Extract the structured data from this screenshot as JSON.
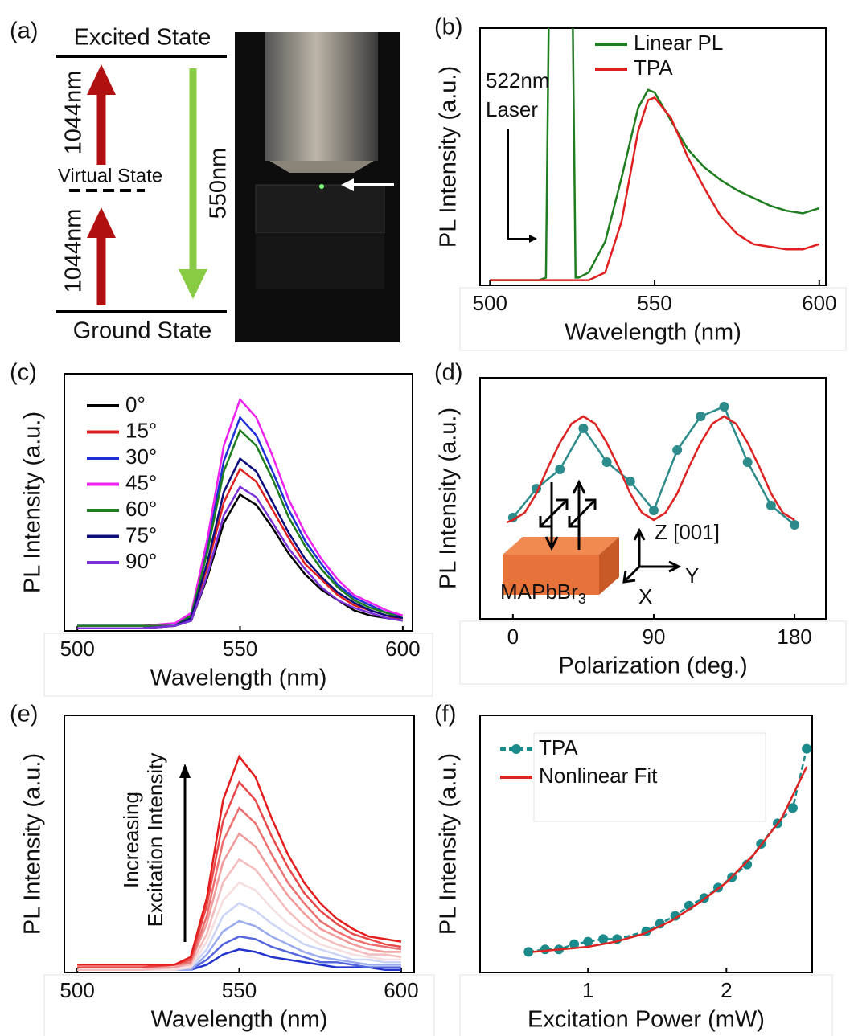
{
  "diagram": {
    "label": "(a)",
    "excited": "Excited State",
    "ground": "Ground State",
    "virtual": "Virtual State",
    "transition_up": [
      "1044nm",
      "1044nm"
    ],
    "emission": "550nm"
  },
  "chart_data": [
    {
      "label": "(b)",
      "type": "line",
      "xlabel": "Wavelength (nm)",
      "ylabel": "PL Intensity (a.u.)",
      "xlim": [
        497,
        602
      ],
      "xticks": [
        500,
        550,
        600
      ],
      "ylim": [
        0,
        1
      ],
      "legend": "upper right",
      "annotations": [
        "522nm",
        "Laser"
      ],
      "x": [
        500,
        505,
        510,
        515,
        517,
        518,
        525,
        526,
        527,
        530,
        535,
        540,
        545,
        548,
        550,
        555,
        560,
        565,
        570,
        575,
        580,
        585,
        590,
        595,
        600
      ],
      "series": [
        {
          "name": "Linear PL",
          "color": "#1e7d1e",
          "values": [
            0.02,
            0.02,
            0.02,
            0.02,
            0.03,
            1.2,
            1.2,
            0.03,
            0.03,
            0.05,
            0.17,
            0.42,
            0.69,
            0.76,
            0.75,
            0.64,
            0.53,
            0.46,
            0.41,
            0.37,
            0.34,
            0.31,
            0.29,
            0.28,
            0.3
          ]
        },
        {
          "name": "TPA",
          "color": "#e02020",
          "values": [
            0.02,
            0.02,
            0.02,
            0.02,
            0.02,
            0.02,
            0.02,
            0.02,
            0.02,
            0.02,
            0.05,
            0.25,
            0.6,
            0.72,
            0.73,
            0.65,
            0.5,
            0.38,
            0.27,
            0.2,
            0.16,
            0.15,
            0.14,
            0.14,
            0.16
          ]
        }
      ]
    },
    {
      "label": "(c)",
      "type": "line",
      "xlabel": "Wavelength (nm)",
      "ylabel": "PL Intensity (a.u.)",
      "xlim": [
        496,
        603
      ],
      "xticks": [
        500,
        550,
        600
      ],
      "ylim": [
        0,
        1
      ],
      "legend": "upper left",
      "x": [
        500,
        510,
        520,
        530,
        535,
        540,
        545,
        550,
        555,
        560,
        565,
        570,
        575,
        580,
        585,
        590,
        595,
        600
      ],
      "series": [
        {
          "name": "0°",
          "color": "#000000",
          "values": [
            0.01,
            0.01,
            0.01,
            0.02,
            0.04,
            0.21,
            0.42,
            0.53,
            0.49,
            0.4,
            0.3,
            0.22,
            0.16,
            0.12,
            0.08,
            0.06,
            0.05,
            0.04
          ]
        },
        {
          "name": "15°",
          "color": "#e02020",
          "values": [
            0.01,
            0.01,
            0.01,
            0.02,
            0.05,
            0.25,
            0.5,
            0.63,
            0.58,
            0.47,
            0.36,
            0.26,
            0.2,
            0.14,
            0.1,
            0.08,
            0.06,
            0.04
          ]
        },
        {
          "name": "30°",
          "color": "#1f2fd6",
          "values": [
            0.02,
            0.02,
            0.02,
            0.02,
            0.07,
            0.33,
            0.66,
            0.83,
            0.76,
            0.62,
            0.47,
            0.35,
            0.26,
            0.18,
            0.13,
            0.1,
            0.07,
            0.06
          ]
        },
        {
          "name": "45°",
          "color": "#ee22ee",
          "values": [
            0.02,
            0.02,
            0.02,
            0.03,
            0.07,
            0.36,
            0.72,
            0.9,
            0.83,
            0.68,
            0.51,
            0.38,
            0.28,
            0.2,
            0.14,
            0.11,
            0.08,
            0.06
          ]
        },
        {
          "name": "60°",
          "color": "#1e7d1e",
          "values": [
            0.02,
            0.02,
            0.02,
            0.02,
            0.06,
            0.31,
            0.62,
            0.78,
            0.72,
            0.59,
            0.44,
            0.33,
            0.24,
            0.17,
            0.12,
            0.09,
            0.07,
            0.05
          ]
        },
        {
          "name": "75°",
          "color": "#0c0c7a",
          "values": [
            0.01,
            0.01,
            0.01,
            0.02,
            0.05,
            0.27,
            0.54,
            0.67,
            0.62,
            0.5,
            0.38,
            0.28,
            0.21,
            0.15,
            0.11,
            0.08,
            0.06,
            0.05
          ]
        },
        {
          "name": "90°",
          "color": "#7a30d8",
          "values": [
            0.01,
            0.01,
            0.01,
            0.02,
            0.04,
            0.22,
            0.45,
            0.56,
            0.52,
            0.42,
            0.32,
            0.24,
            0.17,
            0.12,
            0.09,
            0.07,
            0.05,
            0.04
          ]
        }
      ]
    },
    {
      "label": "(d)",
      "type": "line",
      "xlabel": "Polarization (deg.)",
      "ylabel": "PL Intensity (a.u.)",
      "xlim": [
        -21,
        200
      ],
      "xticks": [
        0,
        90,
        180
      ],
      "ylim": [
        0,
        1
      ],
      "inset": {
        "material": {
          "label": "MAPbBr",
          "subscript": "3"
        },
        "axes": [
          "Z [001]",
          "Y",
          "X"
        ]
      },
      "series": [
        {
          "color": "#2e8b8b",
          "marker": true,
          "x": [
            0,
            15,
            30,
            45,
            60,
            75,
            90,
            105,
            120,
            135,
            150,
            165,
            180
          ],
          "values": [
            0.42,
            0.54,
            0.62,
            0.79,
            0.65,
            0.57,
            0.45,
            0.7,
            0.84,
            0.88,
            0.65,
            0.47,
            0.39
          ]
        },
        {
          "color": "#dd2222",
          "x": [
            -4,
            0,
            7.5,
            15,
            22.5,
            30,
            37.5,
            45,
            52.5,
            60,
            67.5,
            75,
            82.5,
            90,
            97.5,
            105,
            112.5,
            120,
            127.5,
            135,
            142.5,
            150,
            157.5,
            165,
            172.5,
            180
          ],
          "values": [
            0.4,
            0.41,
            0.44,
            0.52,
            0.63,
            0.73,
            0.81,
            0.84,
            0.81,
            0.73,
            0.63,
            0.52,
            0.44,
            0.41,
            0.44,
            0.52,
            0.63,
            0.73,
            0.81,
            0.84,
            0.81,
            0.73,
            0.63,
            0.52,
            0.44,
            0.41
          ]
        }
      ]
    },
    {
      "label": "(e)",
      "type": "line",
      "xlabel": "Wavelength (nm)",
      "ylabel": "PL Intensity (a.u.)",
      "xlim": [
        496,
        604
      ],
      "xticks": [
        500,
        550,
        600
      ],
      "ylim": [
        0,
        1
      ],
      "annotations": [
        "Increasing",
        "Excitation Intensity"
      ],
      "x": [
        500,
        510,
        520,
        530,
        535,
        540,
        545,
        550,
        555,
        560,
        565,
        570,
        575,
        580,
        585,
        590,
        595,
        600
      ],
      "series": [
        {
          "color": "#2233cc",
          "values": [
            0.01,
            0.01,
            0.01,
            0.01,
            0.01,
            0.03,
            0.07,
            0.09,
            0.08,
            0.06,
            0.05,
            0.04,
            0.03,
            0.02,
            0.02,
            0.02,
            0.01,
            0.01
          ]
        },
        {
          "color": "#5566dd",
          "values": [
            0.01,
            0.01,
            0.01,
            0.01,
            0.01,
            0.05,
            0.11,
            0.14,
            0.13,
            0.1,
            0.08,
            0.06,
            0.04,
            0.04,
            0.03,
            0.02,
            0.02,
            0.02
          ]
        },
        {
          "color": "#99aaee",
          "values": [
            0.01,
            0.01,
            0.01,
            0.01,
            0.01,
            0.07,
            0.16,
            0.2,
            0.18,
            0.14,
            0.11,
            0.08,
            0.06,
            0.05,
            0.04,
            0.03,
            0.03,
            0.03
          ]
        },
        {
          "color": "#ccd4f5",
          "values": [
            0.01,
            0.01,
            0.01,
            0.01,
            0.02,
            0.09,
            0.22,
            0.27,
            0.24,
            0.19,
            0.15,
            0.11,
            0.09,
            0.07,
            0.05,
            0.05,
            0.04,
            0.04
          ]
        },
        {
          "color": "#f5dede",
          "values": [
            0.01,
            0.01,
            0.01,
            0.01,
            0.02,
            0.12,
            0.28,
            0.35,
            0.32,
            0.25,
            0.19,
            0.15,
            0.11,
            0.09,
            0.07,
            0.06,
            0.05,
            0.05
          ]
        },
        {
          "color": "#f4bcbc",
          "values": [
            0.01,
            0.01,
            0.01,
            0.02,
            0.03,
            0.15,
            0.35,
            0.44,
            0.4,
            0.32,
            0.24,
            0.18,
            0.14,
            0.11,
            0.09,
            0.07,
            0.07,
            0.06
          ]
        },
        {
          "color": "#f09a9a",
          "values": [
            0.02,
            0.02,
            0.02,
            0.02,
            0.04,
            0.19,
            0.43,
            0.54,
            0.49,
            0.39,
            0.3,
            0.23,
            0.17,
            0.14,
            0.11,
            0.09,
            0.08,
            0.08
          ]
        },
        {
          "color": "#ec7070",
          "values": [
            0.02,
            0.02,
            0.02,
            0.03,
            0.04,
            0.22,
            0.51,
            0.64,
            0.58,
            0.46,
            0.35,
            0.27,
            0.2,
            0.16,
            0.13,
            0.11,
            0.1,
            0.09
          ]
        },
        {
          "color": "#e84848",
          "values": [
            0.02,
            0.02,
            0.02,
            0.03,
            0.05,
            0.26,
            0.59,
            0.74,
            0.67,
            0.53,
            0.41,
            0.31,
            0.24,
            0.19,
            0.15,
            0.13,
            0.11,
            0.1
          ]
        },
        {
          "color": "#e41c1c",
          "values": [
            0.03,
            0.03,
            0.03,
            0.03,
            0.06,
            0.29,
            0.67,
            0.84,
            0.76,
            0.6,
            0.46,
            0.35,
            0.27,
            0.21,
            0.17,
            0.14,
            0.13,
            0.12
          ]
        }
      ]
    },
    {
      "label": "(f)",
      "type": "line",
      "xlabel": "Excitation Power (mW)",
      "ylabel": "PL Intensity (a.u.)",
      "xlim": [
        0.22,
        2.62
      ],
      "xticks": [
        1,
        2
      ],
      "ylim": [
        0,
        1
      ],
      "legend": "upper left",
      "series": [
        {
          "name": "TPA",
          "color": "#1a8a8a",
          "marker": true,
          "dashed": true,
          "x": [
            0.57,
            0.69,
            0.79,
            0.9,
            1.0,
            1.11,
            1.21,
            1.42,
            1.52,
            1.63,
            1.73,
            1.84,
            1.94,
            2.04,
            2.15,
            2.25,
            2.37,
            2.48,
            2.58
          ],
          "values": [
            0.08,
            0.09,
            0.09,
            0.11,
            0.12,
            0.13,
            0.13,
            0.16,
            0.19,
            0.22,
            0.26,
            0.29,
            0.33,
            0.37,
            0.42,
            0.5,
            0.58,
            0.64,
            0.87
          ]
        },
        {
          "name": "Nonlinear Fit",
          "color": "#dd2222",
          "x": [
            0.6,
            0.8,
            1.0,
            1.2,
            1.4,
            1.6,
            1.8,
            2.0,
            2.2,
            2.4,
            2.58
          ],
          "values": [
            0.08,
            0.09,
            0.1,
            0.12,
            0.15,
            0.2,
            0.27,
            0.35,
            0.46,
            0.6,
            0.8
          ]
        }
      ]
    }
  ]
}
